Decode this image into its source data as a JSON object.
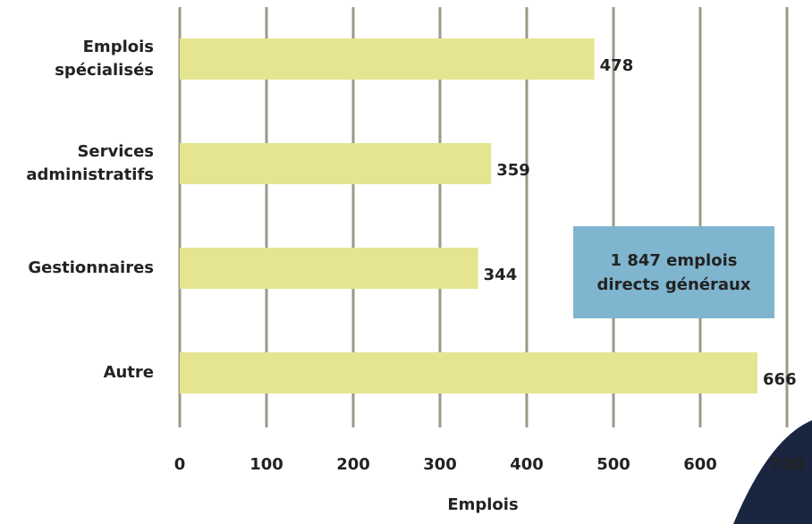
{
  "chart_data": {
    "type": "bar",
    "orientation": "horizontal",
    "categories": [
      "Emplois\nspécialisés",
      "Services\nadministratifs",
      "Gestionnaires",
      "Autre"
    ],
    "values": [
      478,
      359,
      344,
      666
    ],
    "color": "#e5e591",
    "xlim": [
      0,
      700
    ],
    "xticks": [
      0,
      100,
      200,
      300,
      400,
      500,
      600,
      700
    ],
    "grid": true,
    "xlabel": "Emplois",
    "annotation": "1 847 emplois\ndirects généraux"
  }
}
